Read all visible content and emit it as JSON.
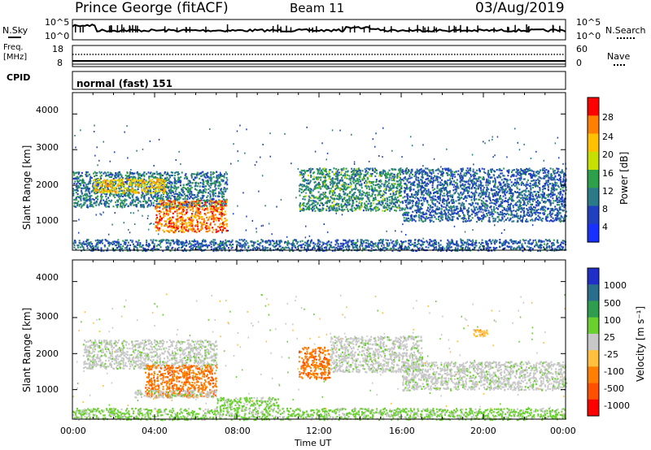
{
  "header": {
    "station": "Prince George (fitACF)",
    "beam": "Beam 11",
    "date": "03/Aug/2019"
  },
  "sky_panel": {
    "left_label": "N.Sky",
    "left_ticks": [
      "10^5",
      "10^0"
    ],
    "right_ticks": [
      "10^5",
      "10^0"
    ],
    "right_label": "N.Search"
  },
  "freq_panel": {
    "left_label_1": "Freq.",
    "left_label_2": "[MHz]",
    "left_ticks": [
      "18",
      "8"
    ],
    "right_ticks": [
      "60",
      "0"
    ],
    "right_label": "Nave"
  },
  "cpid": {
    "label": "CPID",
    "value": "normal (fast) 151"
  },
  "chart_data": [
    {
      "type": "heatmap",
      "name": "power",
      "ylabel": "Slant Range [km]",
      "yticks": [
        "4000",
        "3000",
        "2000",
        "1000"
      ],
      "ylim": [
        180,
        4600
      ],
      "colorbar_label": "Power [dB]",
      "colorbar_ticks": [
        "28",
        "24",
        "20",
        "16",
        "12",
        "8",
        "4"
      ],
      "colorbar_colors": [
        "#ff0000",
        "#ff8000",
        "#ffc000",
        "#c8e000",
        "#2ea04a",
        "#2a7a8a",
        "#2040c0",
        "#1830ff"
      ],
      "echo_regions": [
        {
          "t_start": 0.0,
          "t_end": 7.5,
          "r_min": 1400,
          "r_max": 2400,
          "power": 8
        },
        {
          "t_start": 1.0,
          "t_end": 4.5,
          "r_min": 1800,
          "r_max": 2200,
          "power": 20
        },
        {
          "t_start": 4.0,
          "t_end": 7.5,
          "r_min": 700,
          "r_max": 1600,
          "power": 24
        },
        {
          "t_start": 11.0,
          "t_end": 16.0,
          "r_min": 1300,
          "r_max": 2500,
          "power": 10
        },
        {
          "t_start": 16.0,
          "t_end": 24.0,
          "r_min": 1000,
          "r_max": 2500,
          "power": 6
        },
        {
          "t_start": 0.0,
          "t_end": 24.0,
          "r_min": 180,
          "r_max": 500,
          "power": 6
        }
      ]
    },
    {
      "type": "heatmap",
      "name": "velocity",
      "ylabel": "Slant Range [km]",
      "yticks": [
        "4000",
        "3000",
        "2000",
        "1000"
      ],
      "ylim": [
        180,
        4600
      ],
      "colorbar_label": "Velocity [m s⁻¹]",
      "colorbar_ticks": [
        "1000",
        "500",
        "100",
        "25",
        "-25",
        "-100",
        "-500",
        "-1000"
      ],
      "colorbar_colors": [
        "#1f2fc8",
        "#2a6e8e",
        "#2e9e4e",
        "#6ad030",
        "#c8c8c8",
        "#ffc040",
        "#ff8000",
        "#ff5000",
        "#ff0000"
      ],
      "xlabel": "Time UT",
      "xticks": [
        "00:00",
        "04:00",
        "08:00",
        "12:00",
        "16:00",
        "20:00",
        "00:00"
      ],
      "xlim": [
        0,
        24
      ],
      "echo_regions": [
        {
          "t_start": 0.5,
          "t_end": 7.0,
          "r_min": 1600,
          "r_max": 2400,
          "velocity": 0
        },
        {
          "t_start": 3.5,
          "t_end": 7.0,
          "r_min": 800,
          "r_max": 1700,
          "velocity": -500
        },
        {
          "t_start": 3.0,
          "t_end": 7.0,
          "r_min": 800,
          "r_max": 1000,
          "velocity": 0
        },
        {
          "t_start": 7.0,
          "t_end": 10.0,
          "r_min": 500,
          "r_max": 800,
          "velocity": 100
        },
        {
          "t_start": 11.0,
          "t_end": 12.5,
          "r_min": 1300,
          "r_max": 2200,
          "velocity": -500
        },
        {
          "t_start": 12.5,
          "t_end": 17.0,
          "r_min": 1500,
          "r_max": 2500,
          "velocity": 0
        },
        {
          "t_start": 16.0,
          "t_end": 24.0,
          "r_min": 1000,
          "r_max": 1800,
          "velocity": 0
        },
        {
          "t_start": 19.5,
          "t_end": 20.2,
          "r_min": 2500,
          "r_max": 2700,
          "velocity": -100
        },
        {
          "t_start": 0.0,
          "t_end": 24.0,
          "r_min": 180,
          "r_max": 500,
          "velocity": 100
        }
      ]
    }
  ]
}
